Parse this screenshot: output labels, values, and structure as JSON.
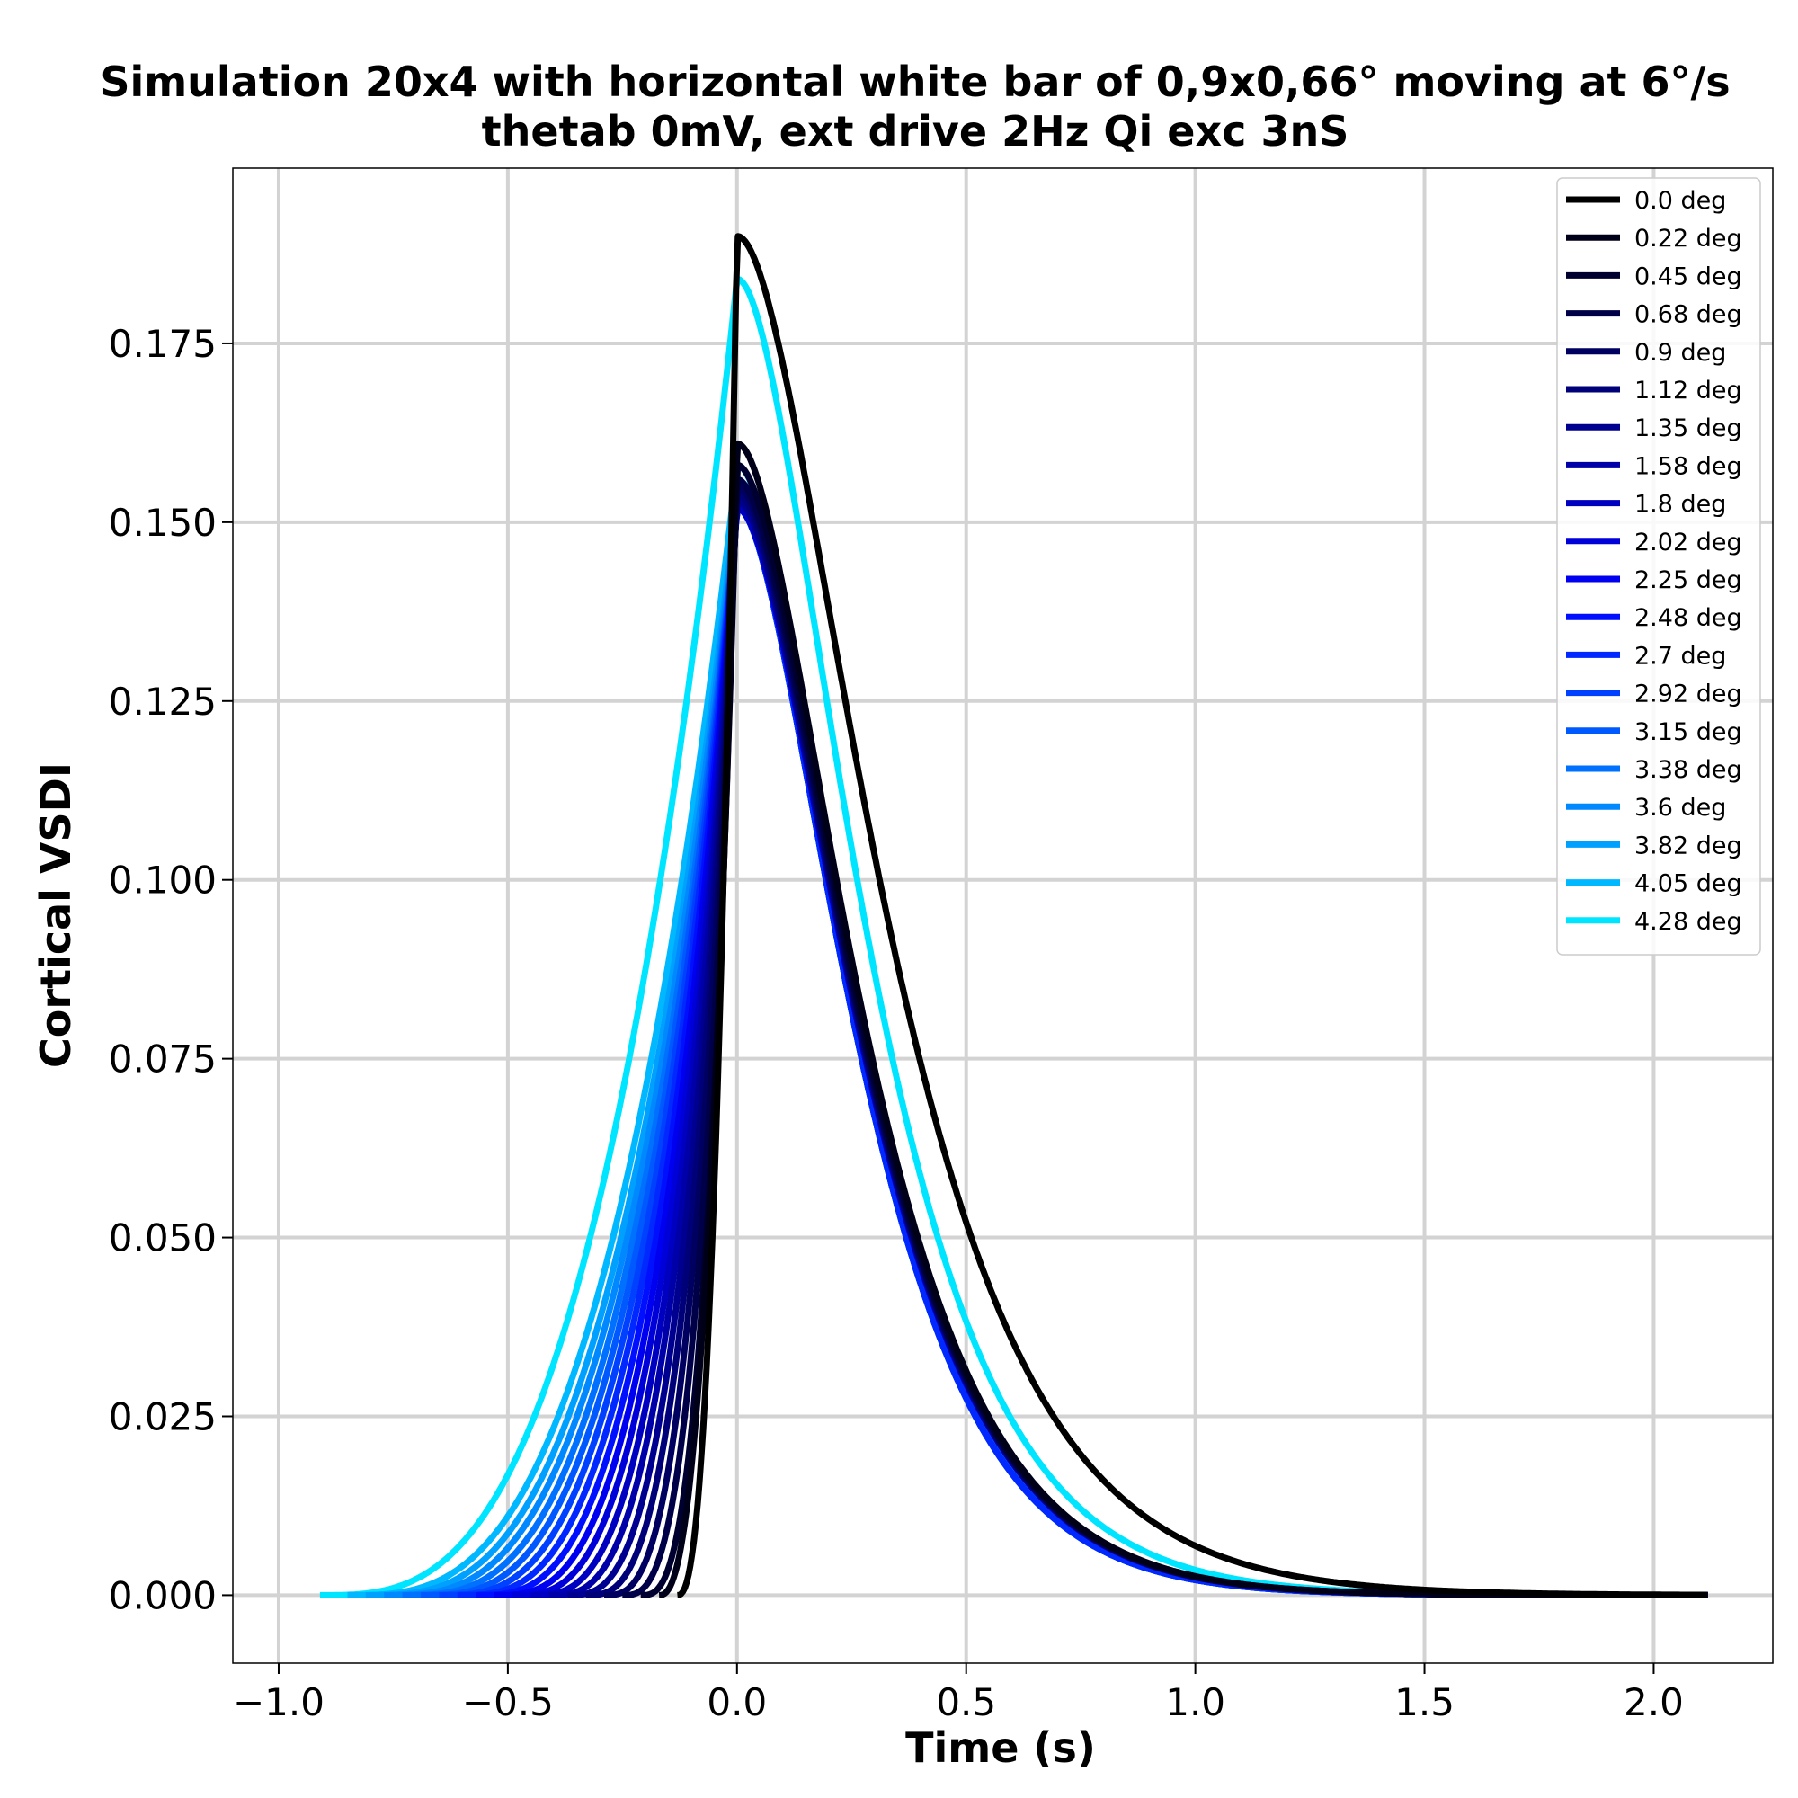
{
  "chart_data": {
    "type": "line",
    "title": "Simulation 20x4 with horizontal white bar of 0,9x0,66° moving at 6°/s",
    "subtitle": "thetab 0mV, ext drive 2Hz Qi exc 3nS",
    "xlabel": "Time (s)",
    "ylabel": "Cortical VSDI",
    "xlim": [
      -1.1,
      2.26
    ],
    "ylim": [
      -0.0095,
      0.1995
    ],
    "xticks": [
      -1.0,
      -0.5,
      0.0,
      0.5,
      1.0,
      1.5,
      2.0
    ],
    "xtick_labels": [
      "−1.0",
      "−0.5",
      "0.0",
      "0.5",
      "1.0",
      "1.5",
      "2.0"
    ],
    "yticks": [
      0.0,
      0.025,
      0.05,
      0.075,
      0.1,
      0.125,
      0.15,
      0.175
    ],
    "ytick_labels": [
      "0.000",
      "0.025",
      "0.050",
      "0.075",
      "0.100",
      "0.125",
      "0.150",
      "0.175"
    ],
    "grid": true,
    "legend_position": "top-right",
    "x_end": 2.12,
    "series": [
      {
        "name": "0.0 deg",
        "color": "#000000",
        "onset": -0.13,
        "peak": 0.19,
        "decay": 0.39
      },
      {
        "name": "0.22 deg",
        "color": "#000018",
        "onset": -0.17,
        "peak": 0.161,
        "decay": 0.33
      },
      {
        "name": "0.45 deg",
        "color": "#000030",
        "onset": -0.21,
        "peak": 0.158,
        "decay": 0.33
      },
      {
        "name": "0.68 deg",
        "color": "#000048",
        "onset": -0.25,
        "peak": 0.156,
        "decay": 0.33
      },
      {
        "name": "0.9 deg",
        "color": "#000060",
        "onset": -0.29,
        "peak": 0.155,
        "decay": 0.33
      },
      {
        "name": "1.12 deg",
        "color": "#000078",
        "onset": -0.33,
        "peak": 0.154,
        "decay": 0.33
      },
      {
        "name": "1.35 deg",
        "color": "#000090",
        "onset": -0.37,
        "peak": 0.153,
        "decay": 0.33
      },
      {
        "name": "1.58 deg",
        "color": "#0000a8",
        "onset": -0.41,
        "peak": 0.153,
        "decay": 0.33
      },
      {
        "name": "1.8 deg",
        "color": "#0000c0",
        "onset": -0.45,
        "peak": 0.152,
        "decay": 0.33
      },
      {
        "name": "2.02 deg",
        "color": "#0000d8",
        "onset": -0.49,
        "peak": 0.152,
        "decay": 0.33
      },
      {
        "name": "2.25 deg",
        "color": "#0000f0",
        "onset": -0.53,
        "peak": 0.152,
        "decay": 0.33
      },
      {
        "name": "2.48 deg",
        "color": "#0010ff",
        "onset": -0.57,
        "peak": 0.152,
        "decay": 0.33
      },
      {
        "name": "2.7 deg",
        "color": "#0028ff",
        "onset": -0.61,
        "peak": 0.152,
        "decay": 0.32
      },
      {
        "name": "2.92 deg",
        "color": "#0040ff",
        "onset": -0.65,
        "peak": 0.152,
        "decay": 0.32
      },
      {
        "name": "3.15 deg",
        "color": "#0058ff",
        "onset": -0.69,
        "peak": 0.152,
        "decay": 0.32
      },
      {
        "name": "3.38 deg",
        "color": "#0070ff",
        "onset": -0.73,
        "peak": 0.152,
        "decay": 0.32
      },
      {
        "name": "3.6 deg",
        "color": "#0088ff",
        "onset": -0.77,
        "peak": 0.153,
        "decay": 0.32
      },
      {
        "name": "3.82 deg",
        "color": "#00a0ff",
        "onset": -0.81,
        "peak": 0.154,
        "decay": 0.32
      },
      {
        "name": "4.05 deg",
        "color": "#00b8ff",
        "onset": -0.85,
        "peak": 0.158,
        "decay": 0.32
      },
      {
        "name": "4.28 deg",
        "color": "#00e5ff",
        "onset": -0.91,
        "peak": 0.184,
        "decay": 0.34
      }
    ]
  }
}
